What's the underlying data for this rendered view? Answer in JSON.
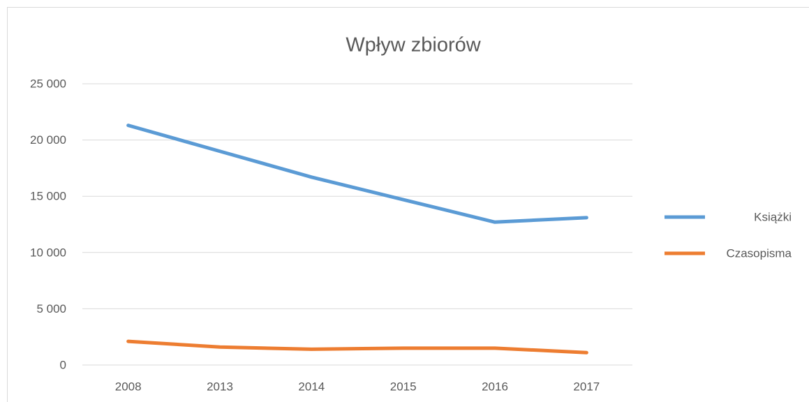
{
  "chart_data": {
    "type": "line",
    "title": "Wpływ zbiorów",
    "categories": [
      "2008",
      "2013",
      "2014",
      "2015",
      "2016",
      "2017"
    ],
    "series": [
      {
        "name": "Książki",
        "color": "#5b9bd5",
        "values": [
          21300,
          19000,
          16700,
          14700,
          12700,
          13100
        ]
      },
      {
        "name": "Czasopisma",
        "color": "#ed7d31",
        "values": [
          2100,
          1600,
          1400,
          1500,
          1500,
          1100
        ]
      }
    ],
    "ylim": [
      0,
      25000
    ],
    "yticks": [
      0,
      {
        "value": 5000,
        "label": "5 000"
      },
      {
        "value": 10000,
        "label": "10 000"
      },
      {
        "value": 15000,
        "label": "15 000"
      },
      {
        "value": 20000,
        "label": "20 000"
      },
      {
        "value": 25000,
        "label": "25 000"
      }
    ],
    "grid": true,
    "legend": "right"
  }
}
